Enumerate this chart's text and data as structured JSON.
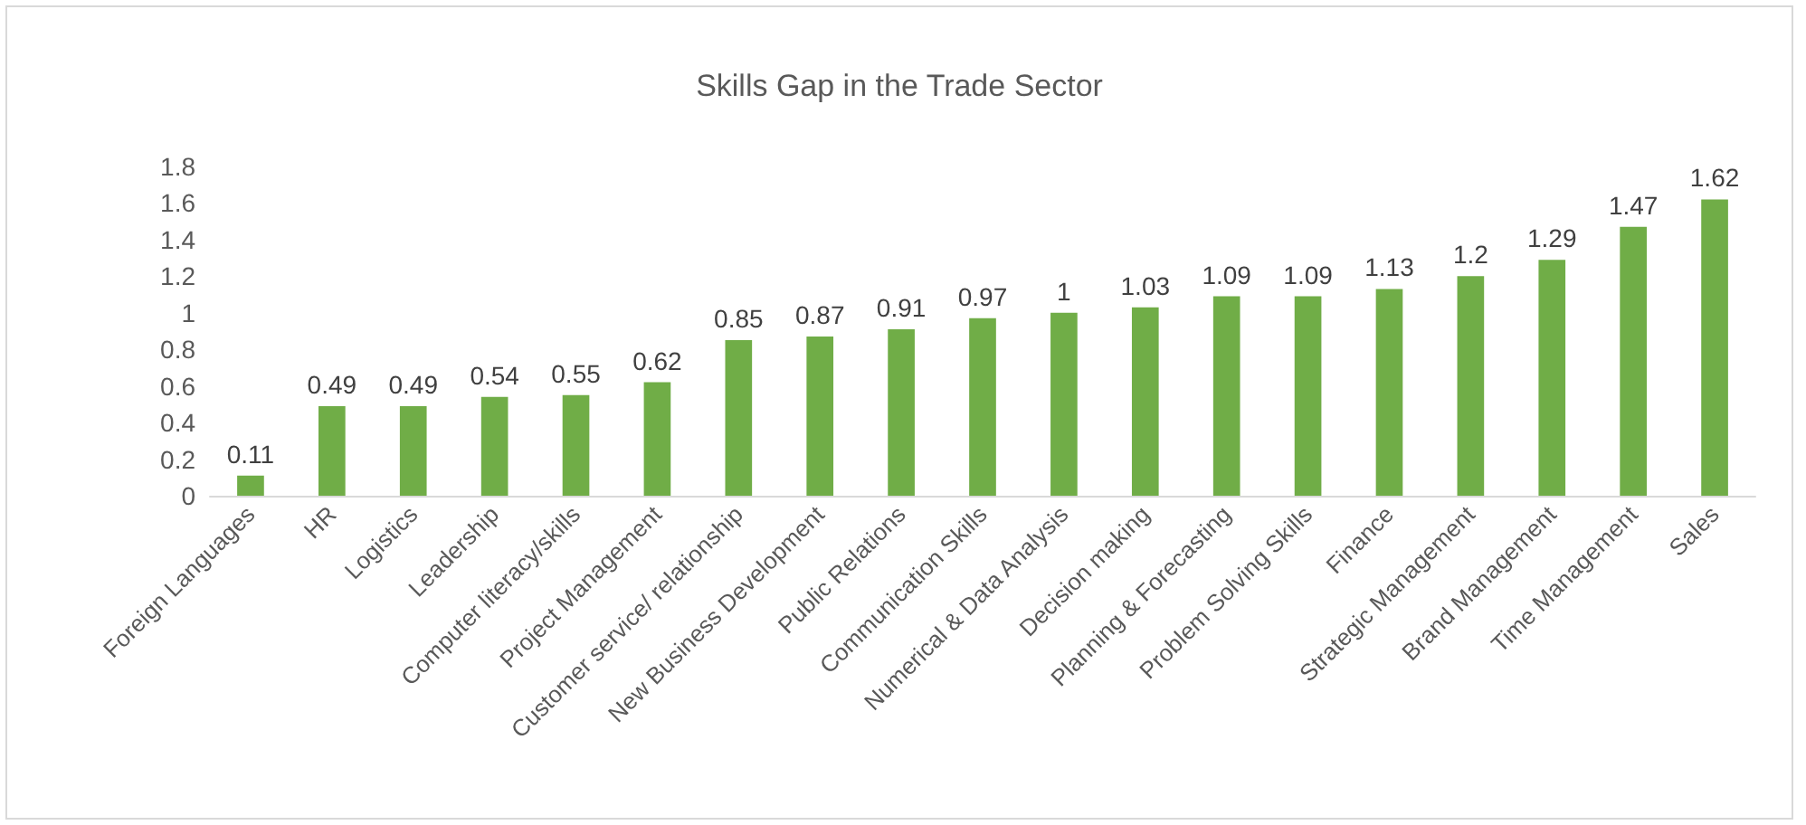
{
  "chart_data": {
    "type": "bar",
    "title": "Skills Gap in the Trade Sector",
    "categories": [
      "Foreign Languages",
      "HR",
      "Logistics",
      "Leadership",
      "Computer literacy/skills",
      "Project Management",
      "Customer service/ relationship",
      "New Business Development",
      "Public Relations",
      "Communication Skills",
      "Numerical & Data Analysis",
      "Decision making",
      "Planning & Forecasting",
      "Problem Solving Skills",
      "Finance",
      "Strategic Management",
      "Brand Management",
      "Time Management",
      "Sales"
    ],
    "values": [
      0.11,
      0.49,
      0.49,
      0.54,
      0.55,
      0.62,
      0.85,
      0.87,
      0.91,
      0.97,
      1,
      1.03,
      1.09,
      1.09,
      1.13,
      1.2,
      1.29,
      1.47,
      1.62
    ],
    "color": "#70ad47",
    "ylim": [
      0,
      1.8
    ],
    "yticks": [
      0,
      0.2,
      0.4,
      0.6,
      0.8,
      1,
      1.2,
      1.4,
      1.6,
      1.8
    ],
    "data_labels": true,
    "grid": false
  }
}
